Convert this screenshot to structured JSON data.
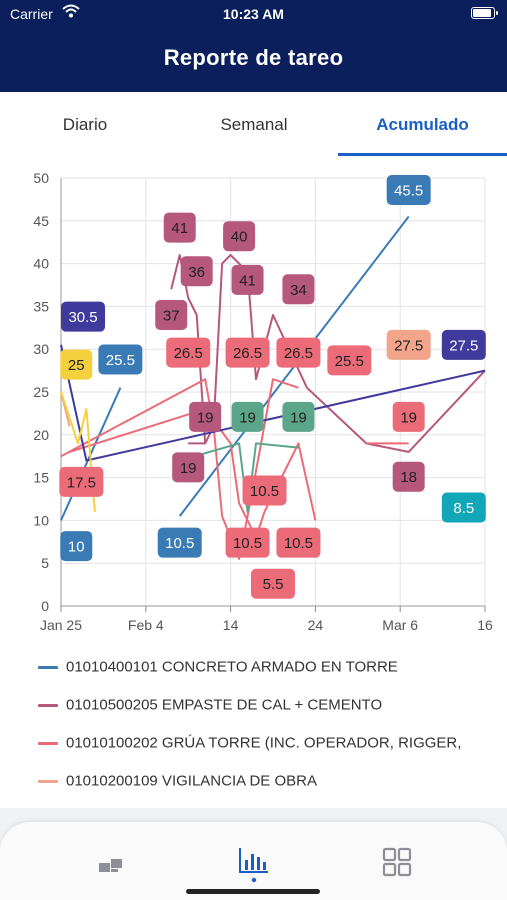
{
  "status_bar": {
    "carrier": "Carrier",
    "time": "10:23 AM",
    "battery_level": 0.95
  },
  "header": {
    "title": "Reporte de tareo"
  },
  "tabs": [
    {
      "label": "Diario",
      "active": false
    },
    {
      "label": "Semanal",
      "active": false
    },
    {
      "label": "Acumulado",
      "active": true
    }
  ],
  "colors": {
    "nav_bg": "#0a1f5c",
    "accent": "#1a5fc8",
    "series": [
      "#3a7bb5",
      "#b5587c",
      "#ec6b78",
      "#f2a58a",
      "#3f3a9c",
      "#f4d03f",
      "#5ba58a",
      "#11a6b8"
    ]
  },
  "chart_data": {
    "type": "line",
    "x_tick_labels": [
      "Jan 25",
      "Feb 4",
      "14",
      "24",
      "Mar 6",
      "16"
    ],
    "y_ticks": [
      0,
      5,
      10,
      15,
      20,
      25,
      30,
      35,
      40,
      45,
      50
    ],
    "ylim": [
      0,
      50
    ],
    "xlim_days": [
      0,
      50
    ],
    "grid": true,
    "series": [
      {
        "name": "01010400101 CONCRETO ARMADO EN TORRE",
        "color": "#3a7bb5",
        "lines": [
          [
            [
              0,
              10
            ],
            [
              7,
              25.5
            ]
          ],
          [
            [
              14,
              10.5
            ],
            [
              41,
              45.5
            ]
          ]
        ]
      },
      {
        "name": "01010500205 EMPASTE DE CAL + CEMENTO",
        "color": "#b5587c",
        "lines": [
          [
            [
              13,
              37
            ],
            [
              14,
              41
            ],
            [
              15,
              36
            ],
            [
              16,
              34
            ],
            [
              17,
              19
            ],
            [
              18,
              21
            ],
            [
              19,
              40
            ],
            [
              20,
              41
            ],
            [
              21,
              40
            ],
            [
              22,
              39
            ],
            [
              23,
              26.5
            ],
            [
              25,
              34
            ],
            [
              29,
              25.5
            ],
            [
              36,
              19
            ],
            [
              41,
              18
            ],
            [
              50,
              27.5
            ]
          ],
          [
            [
              15,
              19
            ],
            [
              17,
              19
            ]
          ]
        ]
      },
      {
        "name": "01010100202 GRÚA TORRE  (INC. OPERADOR, RIGGER,",
        "color": "#ec6b78",
        "lines": [
          [
            [
              0,
              17.5
            ],
            [
              17,
              26.5
            ],
            [
              18,
              21
            ],
            [
              19,
              10.5
            ],
            [
              21,
              5.5
            ],
            [
              22,
              10.5
            ],
            [
              25,
              26.5
            ],
            [
              28,
              25.5
            ]
          ],
          [
            [
              1,
              18
            ],
            [
              17,
              23
            ],
            [
              20,
              19
            ],
            [
              21,
              12
            ],
            [
              23,
              8
            ],
            [
              24,
              11
            ],
            [
              28,
              19
            ],
            [
              30,
              10
            ]
          ],
          [
            [
              36,
              19
            ],
            [
              41,
              19
            ]
          ]
        ]
      },
      {
        "name": "01010200109  VIGILANCIA DE OBRA",
        "color": "#f2a58a",
        "lines": [
          [
            [
              0,
              25
            ],
            [
              1,
              21
            ]
          ]
        ]
      },
      {
        "name": "",
        "color": "#3f3a9c",
        "lines": [
          [
            [
              0,
              30.5
            ],
            [
              3,
              17
            ],
            [
              50,
              27.5
            ]
          ]
        ]
      },
      {
        "name": "",
        "color": "#f4d03f",
        "lines": [
          [
            [
              0,
              25
            ],
            [
              2,
              19
            ],
            [
              3,
              23
            ],
            [
              4,
              11
            ]
          ]
        ]
      },
      {
        "name": "",
        "color": "#5ba58a",
        "lines": [
          [
            [
              14,
              17
            ],
            [
              21,
              19
            ],
            [
              22,
              11
            ],
            [
              23,
              19
            ],
            [
              28,
              18.5
            ]
          ]
        ]
      }
    ],
    "data_labels": [
      {
        "text": "45.5",
        "x": 41,
        "y": 48.6,
        "color": "#3a7bb5",
        "text_color": "#ffffff"
      },
      {
        "text": "41",
        "x": 14,
        "y": 44.2,
        "color": "#b5587c",
        "text_color": "#222222"
      },
      {
        "text": "40",
        "x": 21,
        "y": 43.2,
        "color": "#b5587c",
        "text_color": "#222222"
      },
      {
        "text": "36",
        "x": 16,
        "y": 39.1,
        "color": "#b5587c",
        "text_color": "#222222"
      },
      {
        "text": "41",
        "x": 22,
        "y": 38.1,
        "color": "#b5587c",
        "text_color": "#222222"
      },
      {
        "text": "34",
        "x": 28,
        "y": 37.0,
        "color": "#b5587c",
        "text_color": "#222222"
      },
      {
        "text": "37",
        "x": 13,
        "y": 34.0,
        "color": "#b5587c",
        "text_color": "#222222"
      },
      {
        "text": "30.5",
        "x": 2.6,
        "y": 33.8,
        "color": "#3f3a9c",
        "text_color": "#ffffff"
      },
      {
        "text": "25.5",
        "x": 7,
        "y": 28.8,
        "color": "#3a7bb5",
        "text_color": "#ffffff"
      },
      {
        "text": "26.5",
        "x": 15,
        "y": 29.6,
        "color": "#ec6b78",
        "text_color": "#222222"
      },
      {
        "text": "26.5",
        "x": 22,
        "y": 29.6,
        "color": "#ec6b78",
        "text_color": "#222222"
      },
      {
        "text": "26.5",
        "x": 28,
        "y": 29.6,
        "color": "#ec6b78",
        "text_color": "#222222"
      },
      {
        "text": "25.5",
        "x": 34,
        "y": 28.7,
        "color": "#ec6b78",
        "text_color": "#222222"
      },
      {
        "text": "27.5",
        "x": 41,
        "y": 30.5,
        "color": "#f2a58a",
        "text_color": "#222222"
      },
      {
        "text": "27.5",
        "x": 47.5,
        "y": 30.5,
        "color": "#3f3a9c",
        "text_color": "#ffffff"
      },
      {
        "text": "25",
        "x": 1.8,
        "y": 28.2,
        "color": "#f4d03f",
        "text_color": "#222222"
      },
      {
        "text": "19",
        "x": 17,
        "y": 22.1,
        "color": "#b5587c",
        "text_color": "#222222"
      },
      {
        "text": "19",
        "x": 22,
        "y": 22.1,
        "color": "#5ba58a",
        "text_color": "#222222"
      },
      {
        "text": "19",
        "x": 28,
        "y": 22.1,
        "color": "#5ba58a",
        "text_color": "#222222"
      },
      {
        "text": "19",
        "x": 41,
        "y": 22.1,
        "color": "#ec6b78",
        "text_color": "#222222"
      },
      {
        "text": "19",
        "x": 15,
        "y": 16.2,
        "color": "#b5587c",
        "text_color": "#222222"
      },
      {
        "text": "17.5",
        "x": 2.4,
        "y": 14.5,
        "color": "#ec6b78",
        "text_color": "#222222"
      },
      {
        "text": "18",
        "x": 41,
        "y": 15.1,
        "color": "#b5587c",
        "text_color": "#222222"
      },
      {
        "text": "10.5",
        "x": 24,
        "y": 13.5,
        "color": "#ec6b78",
        "text_color": "#222222"
      },
      {
        "text": "8.5",
        "x": 47.5,
        "y": 11.5,
        "color": "#11a6b8",
        "text_color": "#ffffff"
      },
      {
        "text": "10.5",
        "x": 14,
        "y": 7.4,
        "color": "#3a7bb5",
        "text_color": "#ffffff"
      },
      {
        "text": "10.5",
        "x": 22,
        "y": 7.4,
        "color": "#ec6b78",
        "text_color": "#222222"
      },
      {
        "text": "10.5",
        "x": 28,
        "y": 7.4,
        "color": "#ec6b78",
        "text_color": "#222222"
      },
      {
        "text": "10",
        "x": 1.8,
        "y": 7.0,
        "color": "#3a7bb5",
        "text_color": "#ffffff"
      },
      {
        "text": "5.5",
        "x": 25,
        "y": 2.6,
        "color": "#ec6b78",
        "text_color": "#222222"
      }
    ]
  },
  "legend": [
    {
      "label": "01010400101 CONCRETO ARMADO EN TORRE",
      "color": "#3a7bb5"
    },
    {
      "label": "01010500205 EMPASTE DE CAL + CEMENTO",
      "color": "#b5587c"
    },
    {
      "label": "01010100202 GRÚA TORRE  (INC. OPERADOR, RIGGER,",
      "color": "#ec6b78"
    },
    {
      "label": "01010200109  VIGILANCIA DE OBRA",
      "color": "#f2a58a"
    }
  ],
  "bottom_nav": [
    {
      "icon": "blocks-icon",
      "active": false
    },
    {
      "icon": "bar-chart-icon",
      "active": true
    },
    {
      "icon": "grid-icon",
      "active": false
    }
  ]
}
